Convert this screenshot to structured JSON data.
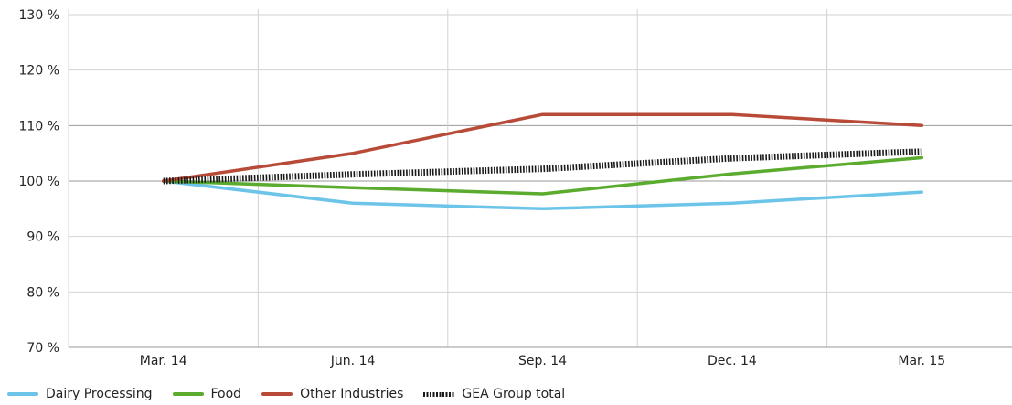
{
  "chart_data": {
    "type": "line",
    "categories": [
      "Mar. 14",
      "Jun. 14",
      "Sep. 14",
      "Dec. 14",
      "Mar. 15"
    ],
    "yticks": [
      "70 %",
      "80 %",
      "90 %",
      "100 %",
      "110 %",
      "120 %",
      "130 %"
    ],
    "ylim": [
      70,
      130
    ],
    "grid": true,
    "legend_position": "bottom-left",
    "series": [
      {
        "name": "Dairy Processing",
        "color": "#6cc5e9",
        "style": "solid",
        "values": [
          100,
          96,
          95,
          96,
          98
        ]
      },
      {
        "name": "Food",
        "color": "#5aab2e",
        "style": "solid",
        "values": [
          100,
          98.8,
          97.7,
          101.3,
          104.2
        ]
      },
      {
        "name": "Other Industries",
        "color": "#b84a38",
        "style": "solid",
        "values": [
          100,
          105,
          112,
          112,
          110
        ]
      },
      {
        "name": "GEA Group total",
        "color": "#1a1a1a",
        "style": "dotted",
        "values": [
          100,
          101.2,
          102.2,
          104.1,
          105.3
        ]
      }
    ]
  }
}
